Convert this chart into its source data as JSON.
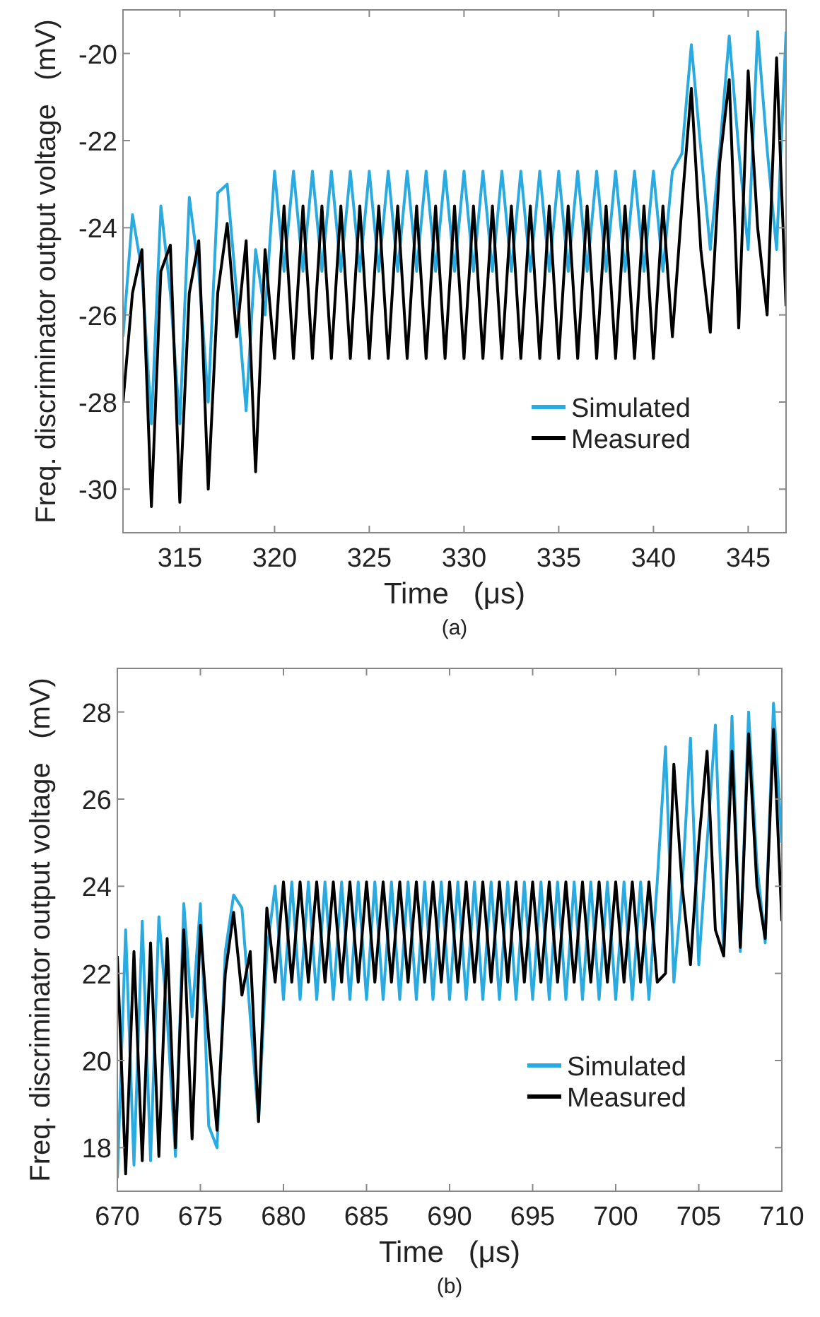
{
  "chart_data": [
    {
      "type": "line",
      "xlabel": "Time   (μs)",
      "ylabel": "Freq. discriminator output voltage   (mV)",
      "annotations": [
        "(a)"
      ],
      "xlim": [
        312,
        347
      ],
      "xticks": [
        315,
        320,
        325,
        330,
        335,
        340,
        345
      ],
      "ylim": [
        -31,
        -19
      ],
      "yticks": [
        -30,
        -28,
        -26,
        -24,
        -22,
        -20
      ],
      "grid": false,
      "legend": "bottom right",
      "x": [
        312,
        312.5,
        313,
        313.5,
        314,
        314.5,
        315,
        315.5,
        316,
        316.5,
        317,
        317.5,
        318,
        318.5,
        319,
        319.5,
        320,
        320.5,
        321,
        321.5,
        322,
        322.5,
        323,
        323.5,
        324,
        324.5,
        325,
        325.5,
        326,
        326.5,
        327,
        327.5,
        328,
        328.5,
        329,
        329.5,
        330,
        330.5,
        331,
        331.5,
        332,
        332.5,
        333,
        333.5,
        334,
        334.5,
        335,
        335.5,
        336,
        336.5,
        337,
        337.5,
        338,
        338.5,
        339,
        339.5,
        340,
        340.5,
        341,
        341.5,
        342,
        342.5,
        343,
        343.5,
        344,
        344.5,
        345,
        345.5,
        346,
        346.5,
        347
      ],
      "series": [
        {
          "name": "Simulated",
          "color": "#29abe2",
          "values": [
            -26.5,
            -23.7,
            -25.0,
            -28.5,
            -23.5,
            -25.5,
            -28.5,
            -23.3,
            -25.0,
            -28.0,
            -23.2,
            -23.0,
            -25.5,
            -28.2,
            -24.5,
            -26.0,
            -22.7,
            -25.0,
            -22.7,
            -25.0,
            -22.7,
            -25.0,
            -22.7,
            -25.0,
            -22.7,
            -25.0,
            -22.7,
            -25.0,
            -22.7,
            -25.0,
            -22.7,
            -25.0,
            -22.7,
            -25.0,
            -22.7,
            -25.0,
            -22.7,
            -25.0,
            -22.7,
            -25.0,
            -22.7,
            -25.0,
            -22.7,
            -25.0,
            -22.7,
            -25.0,
            -22.7,
            -25.0,
            -22.7,
            -25.0,
            -22.7,
            -25.0,
            -22.7,
            -25.0,
            -22.7,
            -25.0,
            -22.7,
            -25.0,
            -22.7,
            -22.3,
            -19.8,
            -22.2,
            -24.5,
            -22.2,
            -19.6,
            -22.2,
            -24.5,
            -19.5,
            -22.2,
            -24.5,
            -19.5
          ]
        },
        {
          "name": "Measured",
          "color": "#000000",
          "values": [
            -28.0,
            -25.5,
            -24.5,
            -30.4,
            -25.0,
            -24.4,
            -30.3,
            -25.5,
            -24.3,
            -30.0,
            -25.5,
            -23.9,
            -26.5,
            -24.3,
            -29.6,
            -24.5,
            -27.0,
            -23.5,
            -27.0,
            -23.5,
            -27.0,
            -23.5,
            -27.0,
            -23.5,
            -27.0,
            -23.5,
            -27.0,
            -23.5,
            -27.0,
            -23.5,
            -27.0,
            -23.5,
            -27.0,
            -23.5,
            -27.0,
            -23.5,
            -27.0,
            -23.5,
            -27.0,
            -23.5,
            -27.0,
            -23.5,
            -27.0,
            -23.5,
            -27.0,
            -23.5,
            -27.0,
            -23.5,
            -27.0,
            -23.5,
            -27.0,
            -23.5,
            -27.0,
            -23.5,
            -27.0,
            -23.5,
            -27.0,
            -23.5,
            -26.5,
            -23.5,
            -20.8,
            -24.5,
            -26.4,
            -22.5,
            -20.6,
            -26.3,
            -20.4,
            -24.0,
            -26.0,
            -20.1,
            -25.8
          ]
        }
      ]
    },
    {
      "type": "line",
      "xlabel": "Time   (μs)",
      "ylabel": "Freq. discriminator output voltage   (mV)",
      "annotations": [
        "(b)"
      ],
      "xlim": [
        670,
        710
      ],
      "xticks": [
        670,
        675,
        680,
        685,
        690,
        695,
        700,
        705,
        710
      ],
      "ylim": [
        17,
        29
      ],
      "yticks": [
        18,
        20,
        22,
        24,
        26,
        28
      ],
      "grid": false,
      "legend": "bottom right",
      "x": [
        670,
        670.5,
        671,
        671.5,
        672,
        672.5,
        673,
        673.5,
        674,
        674.5,
        675,
        675.5,
        676,
        676.5,
        677,
        677.5,
        678,
        678.5,
        679,
        679.5,
        680,
        680.5,
        681,
        681.5,
        682,
        682.5,
        683,
        683.5,
        684,
        684.5,
        685,
        685.5,
        686,
        686.5,
        687,
        687.5,
        688,
        688.5,
        689,
        689.5,
        690,
        690.5,
        691,
        691.5,
        692,
        692.5,
        693,
        693.5,
        694,
        694.5,
        695,
        695.5,
        696,
        696.5,
        697,
        697.5,
        698,
        698.5,
        699,
        699.5,
        700,
        700.5,
        701,
        701.5,
        702,
        702.5,
        703,
        703.5,
        704,
        704.5,
        705,
        705.5,
        706,
        706.5,
        707,
        707.5,
        708,
        708.5,
        709,
        709.5,
        710
      ],
      "series": [
        {
          "name": "Simulated",
          "color": "#29abe2",
          "values": [
            17.3,
            23.0,
            17.6,
            23.2,
            17.7,
            23.3,
            21.0,
            17.8,
            23.6,
            21.0,
            23.6,
            18.5,
            18.0,
            22.5,
            23.8,
            23.5,
            21.0,
            18.6,
            22.5,
            24.0,
            21.4,
            24.1,
            21.4,
            24.1,
            21.4,
            24.1,
            21.4,
            24.1,
            21.4,
            24.1,
            21.4,
            24.1,
            21.4,
            24.1,
            21.4,
            24.1,
            21.4,
            24.1,
            21.4,
            24.1,
            21.4,
            24.1,
            21.4,
            24.1,
            21.4,
            24.1,
            21.4,
            24.1,
            21.4,
            24.1,
            21.4,
            24.1,
            21.4,
            24.1,
            21.4,
            24.1,
            21.4,
            24.1,
            21.4,
            24.1,
            21.4,
            24.1,
            21.4,
            24.1,
            21.4,
            24.1,
            27.2,
            21.8,
            24.0,
            27.4,
            22.2,
            25.0,
            27.7,
            22.4,
            27.9,
            22.5,
            28.0,
            24.5,
            22.7,
            28.2,
            25.0
          ]
        },
        {
          "name": "Measured",
          "color": "#000000",
          "values": [
            22.4,
            17.4,
            22.5,
            17.7,
            22.7,
            17.8,
            22.8,
            18.0,
            23.0,
            18.2,
            23.1,
            20.5,
            18.4,
            22.0,
            23.4,
            21.5,
            22.5,
            18.6,
            23.5,
            21.8,
            24.1,
            21.8,
            24.1,
            21.8,
            24.1,
            21.8,
            24.1,
            21.8,
            24.1,
            21.8,
            24.1,
            21.8,
            24.1,
            21.8,
            24.1,
            21.8,
            24.1,
            21.8,
            24.1,
            21.8,
            24.1,
            21.8,
            24.1,
            21.8,
            24.1,
            21.8,
            24.1,
            21.8,
            24.1,
            21.8,
            24.1,
            21.8,
            24.1,
            21.8,
            24.1,
            21.8,
            24.1,
            21.8,
            24.1,
            21.8,
            24.1,
            21.8,
            24.1,
            21.8,
            24.1,
            21.8,
            22.0,
            26.8,
            24.0,
            22.2,
            25.0,
            27.1,
            23.0,
            22.4,
            27.1,
            22.6,
            27.5,
            24.0,
            22.8,
            27.6,
            23.2
          ]
        }
      ]
    }
  ]
}
